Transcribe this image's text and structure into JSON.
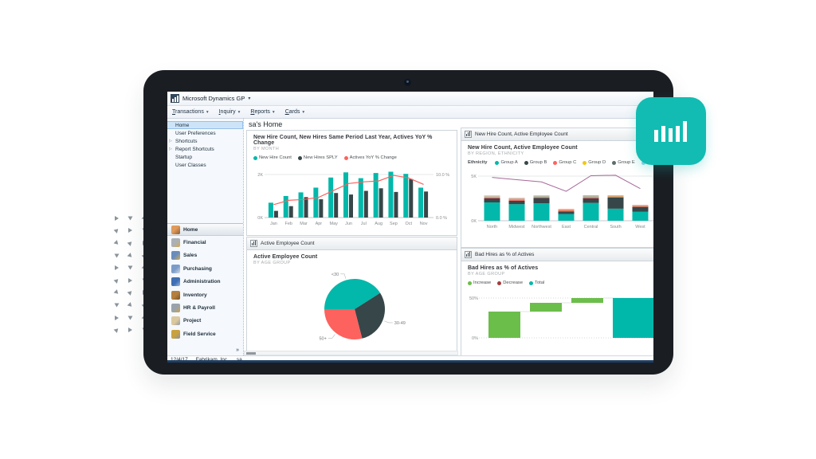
{
  "window": {
    "titlebar": {
      "title": "Microsoft Dynamics GP",
      "caret": "▾"
    },
    "menus": [
      {
        "label": "Transactions"
      },
      {
        "label": "Inquiry"
      },
      {
        "label": "Reports"
      },
      {
        "label": "Cards"
      }
    ],
    "statusbar": {
      "date": "12/4/17",
      "company": "Fabrikam, Inc.",
      "user": "sa"
    }
  },
  "sidebar": {
    "top_items": [
      {
        "label": "Home",
        "selected": true
      },
      {
        "label": "User Preferences"
      },
      {
        "label": "Shortcuts",
        "expandable": true
      },
      {
        "label": "Report Shortcuts",
        "expandable": true
      },
      {
        "label": "Startup"
      },
      {
        "label": "User Classes"
      }
    ],
    "nav_items": [
      {
        "label": "Home",
        "icon": "home-icon",
        "selected": true
      },
      {
        "label": "Financial",
        "icon": "financial-icon"
      },
      {
        "label": "Sales",
        "icon": "sales-icon"
      },
      {
        "label": "Purchasing",
        "icon": "purchasing-icon"
      },
      {
        "label": "Administration",
        "icon": "administration-icon"
      },
      {
        "label": "Inventory",
        "icon": "inventory-icon"
      },
      {
        "label": "HR & Payroll",
        "icon": "hr-payroll-icon"
      },
      {
        "label": "Project",
        "icon": "project-icon"
      },
      {
        "label": "Field Service",
        "icon": "field-service-icon"
      }
    ],
    "expander_glyph": "»"
  },
  "main": {
    "heading": "sa's Home"
  },
  "badge": {
    "icon": "bar-chart-icon",
    "color": "#12bcb2"
  },
  "chart_data": [
    {
      "type": "bar",
      "subtype": "combo-bar-line",
      "title": "New Hire Count, New Hires Same Period Last Year, Actives YoY % Change",
      "subtitle": "BY MONTH",
      "categories": [
        "Jan",
        "Feb",
        "Mar",
        "Apr",
        "May",
        "Jun",
        "Jul",
        "Aug",
        "Sep",
        "Oct",
        "Nov"
      ],
      "series": [
        {
          "name": "New Hire Count",
          "type": "bar",
          "color": "#01B8AA",
          "values": [
            690,
            1000,
            1170,
            1390,
            1860,
            2100,
            1830,
            2070,
            2130,
            2030,
            1390
          ]
        },
        {
          "name": "New Hires SPLY",
          "type": "bar",
          "color": "#374649",
          "values": [
            310,
            530,
            950,
            850,
            1140,
            1070,
            1240,
            1360,
            1190,
            1790,
            1210
          ]
        },
        {
          "name": "Actives YoY % Change",
          "type": "line",
          "axis": "right",
          "color": "#FD625E",
          "values": [
            3.0,
            4.0,
            4.2,
            4.7,
            6.3,
            7.9,
            8.3,
            8.5,
            9.8,
            9.2,
            7.7
          ]
        }
      ],
      "y_left": {
        "ticks": [
          "0K",
          "2K"
        ],
        "max_value": 2000,
        "grid": true
      },
      "y_right": {
        "ticks": [
          "0.0 %",
          "10.0 %"
        ],
        "max_value": 10
      },
      "legend_position": "top"
    },
    {
      "type": "bar",
      "subtype": "stacked-bar-line",
      "window_caption": "New Hire Count, Active Employee Count",
      "title": "New Hire Count, Active Employee Count",
      "subtitle": "BY REGION, ETHNICITY",
      "legend_label": "Ethnicity",
      "categories": [
        "North",
        "Midwest",
        "Northwest",
        "East",
        "Central",
        "South",
        "West"
      ],
      "series": [
        {
          "name": "Group A",
          "type": "bar",
          "color": "#01B8AA",
          "values": [
            2050,
            1850,
            1950,
            750,
            2000,
            1350,
            1000
          ]
        },
        {
          "name": "Group B",
          "type": "bar",
          "color": "#374649",
          "values": [
            450,
            400,
            600,
            300,
            500,
            1250,
            550
          ]
        },
        {
          "name": "Group C",
          "type": "bar",
          "color": "#FD625E",
          "values": [
            120,
            120,
            100,
            120,
            150,
            100,
            80
          ]
        },
        {
          "name": "Group D",
          "type": "bar",
          "color": "#F2C80F",
          "values": [
            50,
            40,
            50,
            40,
            50,
            40,
            40
          ]
        },
        {
          "name": "Group E",
          "type": "bar",
          "color": "#5F6B6D",
          "values": [
            30,
            30,
            30,
            30,
            30,
            30,
            30
          ]
        },
        {
          "name": "Group F",
          "type": "bar",
          "color": "#8AD4EB",
          "values": [
            40,
            30,
            40,
            30,
            40,
            30,
            30
          ]
        },
        {
          "name": "Group G",
          "type": "bar",
          "color": "#FE9666",
          "values": [
            80,
            80,
            60,
            60,
            80,
            60,
            50
          ]
        },
        {
          "name": "Actives",
          "type": "line",
          "color": "#A66999",
          "values": [
            4850,
            4600,
            4350,
            3300,
            5050,
            5100,
            3600
          ]
        }
      ],
      "y_left": {
        "ticks": [
          "0K",
          "5K"
        ],
        "max_value": 5000,
        "grid": true
      },
      "legend_position": "top"
    },
    {
      "type": "pie",
      "window_caption": "Active Employee Count",
      "title": "Active Employee Count",
      "subtitle": "BY AGE GROUP",
      "slices": [
        {
          "label": "<30",
          "pct": 41,
          "color": "#01B8AA"
        },
        {
          "label": "30-49",
          "pct": 30,
          "color": "#374649"
        },
        {
          "label": "50+",
          "pct": 29,
          "color": "#FD625E"
        }
      ]
    },
    {
      "type": "bar",
      "subtype": "waterfall",
      "window_caption": "Bad Hires as % of Actives",
      "title": "Bad Hires as % of Actives",
      "subtitle": "BY AGE GROUP",
      "legend": [
        {
          "label": "Increase",
          "color": "#6CBE4B"
        },
        {
          "label": "Decrease",
          "color": "#A43B3B"
        },
        {
          "label": "Total",
          "color": "#00B8AA"
        }
      ],
      "bars": [
        {
          "from": 0,
          "to": 33,
          "kind": "increase"
        },
        {
          "from": 33,
          "to": 44,
          "kind": "increase"
        },
        {
          "from": 44,
          "to": 50,
          "kind": "increase"
        },
        {
          "from": 0,
          "to": 50,
          "kind": "total"
        }
      ],
      "y_left": {
        "ticks": [
          "0%",
          "50%"
        ],
        "max_value": 50,
        "grid": "dotted"
      },
      "legend_position": "top"
    }
  ]
}
